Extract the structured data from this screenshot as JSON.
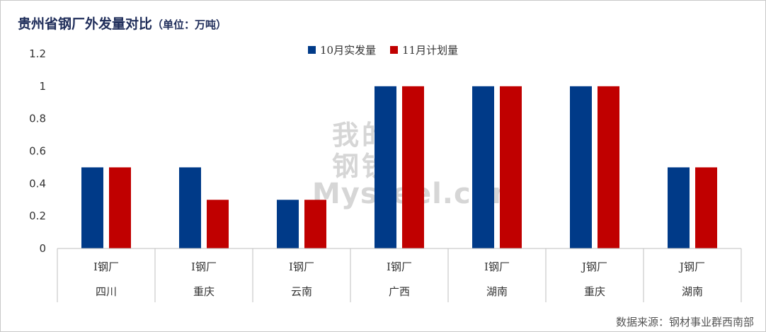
{
  "title": {
    "main": "贵州省钢厂外发量对比",
    "unit": "（单位：万吨）"
  },
  "source": "数据来源：钢材事业群西南部",
  "watermark": {
    "cn": "我的钢铁",
    "en": "Mysteel.com"
  },
  "colors": {
    "series1": "#003A88",
    "series2": "#C00000"
  },
  "chart_data": {
    "type": "bar",
    "categories": [
      [
        "I钢厂",
        "四川"
      ],
      [
        "I钢厂",
        "重庆"
      ],
      [
        "I钢厂",
        "云南"
      ],
      [
        "I钢厂",
        "广西"
      ],
      [
        "I钢厂",
        "湖南"
      ],
      [
        "J钢厂",
        "重庆"
      ],
      [
        "J钢厂",
        "湖南"
      ]
    ],
    "series": [
      {
        "name": "10月实发量",
        "values": [
          0.5,
          0.5,
          0.3,
          1,
          1,
          1,
          0.5
        ]
      },
      {
        "name": "11月计划量",
        "values": [
          0.5,
          0.3,
          0.3,
          1,
          1,
          1,
          0.5
        ]
      }
    ],
    "yticks": [
      "0",
      "0.2",
      "0.4",
      "0.6",
      "0.8",
      "1",
      "1.2"
    ],
    "ylim": [
      0,
      1.2
    ],
    "legend": "top-center",
    "grid": false
  }
}
